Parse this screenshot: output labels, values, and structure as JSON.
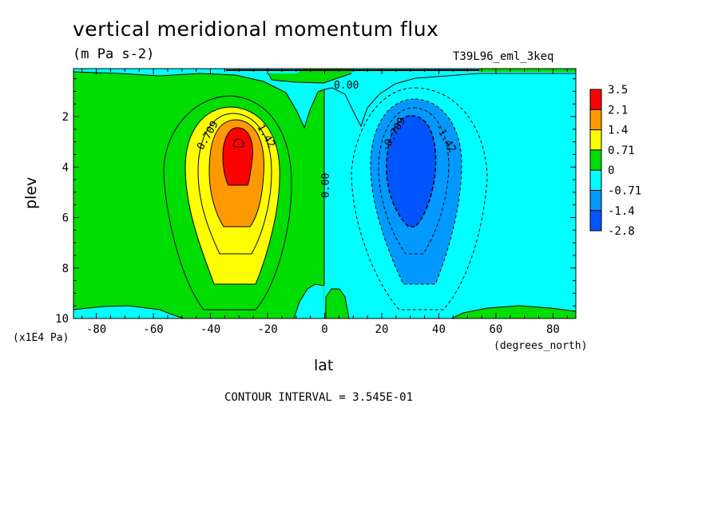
{
  "chart_data": {
    "type": "heatmap",
    "title": "vertical meridional momentum flux",
    "subtitle": "(m Pa s-2)",
    "run_label": "T39L96_eml_3keq",
    "xlabel": "lat",
    "xunit": "(degrees_north)",
    "ylabel": "plev",
    "yunit": "(x1E4 Pa)",
    "xlim": [
      -88,
      88
    ],
    "ylim": [
      10,
      0.1
    ],
    "x_ticks": [
      -80,
      -60,
      -40,
      -20,
      0,
      20,
      40,
      60,
      80
    ],
    "y_ticks": [
      2,
      4,
      6,
      8,
      10
    ],
    "colorbar": {
      "labels": [
        "3.5",
        "2.1",
        "1.4",
        "0.71",
        "0",
        "-0.71",
        "-1.4",
        "-2.8"
      ],
      "colors": [
        "#ff0000",
        "#ff9900",
        "#ffff00",
        "#00dd00",
        "#00ffff",
        "#0099ff",
        "#0055ff"
      ]
    },
    "contour_labels": [
      "0.709",
      "1.42",
      "0.00",
      "0.00",
      "-0.709",
      "-1.42"
    ],
    "contour_interval": "CONTOUR INTERVAL = 3.545E-01"
  }
}
